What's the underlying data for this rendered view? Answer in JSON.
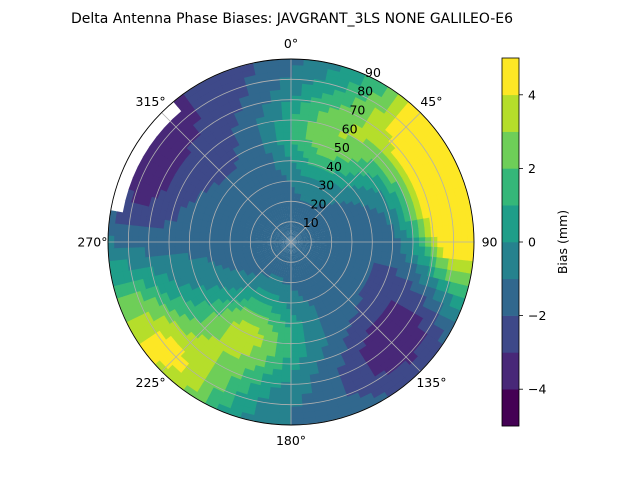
{
  "chart_data": {
    "type": "polar-contourf",
    "title": "Delta Antenna Phase Biases: JAVGRANT_3LS    NONE GALILEO-E6",
    "theta_ticks": [
      {
        "deg": 0,
        "label": "0°"
      },
      {
        "deg": 45,
        "label": "45°"
      },
      {
        "deg": 90,
        "label": "90"
      },
      {
        "deg": 135,
        "label": "135°"
      },
      {
        "deg": 180,
        "label": "180°"
      },
      {
        "deg": 225,
        "label": "225°"
      },
      {
        "deg": 270,
        "label": "270°"
      },
      {
        "deg": 315,
        "label": "315°"
      }
    ],
    "theta_direction": "clockwise",
    "theta_zero": "top",
    "r_range": [
      0,
      90
    ],
    "r_ticks": [
      10,
      20,
      30,
      40,
      50,
      60,
      70,
      80,
      90
    ],
    "r_tick_angle_deg": 22.5,
    "grid": true,
    "colorbar": {
      "label": "Bias (mm)",
      "range": [
        -5,
        5
      ],
      "levels": [
        -5,
        -4,
        -3,
        -2,
        -1,
        0,
        1,
        2,
        3,
        4,
        5
      ],
      "ticks": [
        -4,
        -2,
        0,
        2,
        4
      ],
      "tick_labels": [
        "−4",
        "−2",
        "0",
        "2",
        "4"
      ],
      "colors": [
        "#440154",
        "#482878",
        "#3e4989",
        "#31688e",
        "#26828e",
        "#1f9e89",
        "#35b779",
        "#6ece58",
        "#b5de2b",
        "#fde725"
      ]
    },
    "data_features": [
      {
        "name": "positive ridge NE",
        "theta_deg": 65,
        "r_deg": 83,
        "value": 4.8
      },
      {
        "name": "positive lobe E",
        "theta_deg": 82,
        "r_deg": 85,
        "value": 4.5
      },
      {
        "name": "positive band N",
        "theta_deg": 20,
        "r_deg": 55,
        "value": 2.2
      },
      {
        "name": "positive blob SW",
        "theta_deg": 205,
        "r_deg": 50,
        "value": 3.5
      },
      {
        "name": "positive lobe SW edge",
        "theta_deg": 228,
        "r_deg": 85,
        "value": 4.6
      },
      {
        "name": "negative trough SE",
        "theta_deg": 132,
        "r_deg": 72,
        "value": -4.6
      },
      {
        "name": "negative band W",
        "theta_deg": 290,
        "r_deg": 78,
        "value": -3.8
      },
      {
        "name": "masked region NW",
        "theta_deg": 300,
        "r_deg": 88,
        "value": null
      }
    ]
  }
}
